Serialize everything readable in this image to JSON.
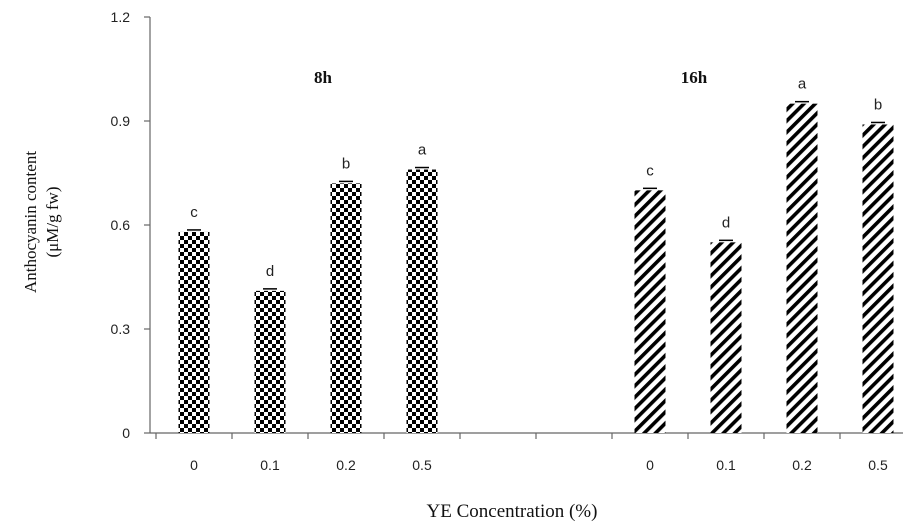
{
  "chart_data": {
    "type": "bar",
    "title": "",
    "xlabel": "YE Concentration (%)",
    "ylabel_lines": [
      "Anthocyanin content",
      "(μM/g fw)"
    ],
    "ylim": [
      0,
      1.2
    ],
    "yticks": [
      "0",
      "0.3",
      "0.6",
      "0.9",
      "1.2"
    ],
    "grid": false,
    "panel_labels": [
      "8h",
      "16h"
    ],
    "pattern_colors": {
      "bar_fill": "#000000",
      "background": "#ffffff"
    },
    "groups": [
      {
        "name": "8h",
        "pattern": "checkerboard",
        "categories": [
          "0",
          "0.1",
          "0.2",
          "0.5"
        ],
        "values": [
          0.58,
          0.41,
          0.72,
          0.76
        ],
        "significance": [
          "c",
          "d",
          "b",
          "a"
        ]
      },
      {
        "name": "16h",
        "pattern": "diagonal-stripes",
        "categories": [
          "0",
          "0.1",
          "0.2",
          "0.5"
        ],
        "values": [
          0.7,
          0.55,
          0.95,
          0.89
        ],
        "significance": [
          "c",
          "d",
          "a",
          "b"
        ]
      }
    ]
  }
}
